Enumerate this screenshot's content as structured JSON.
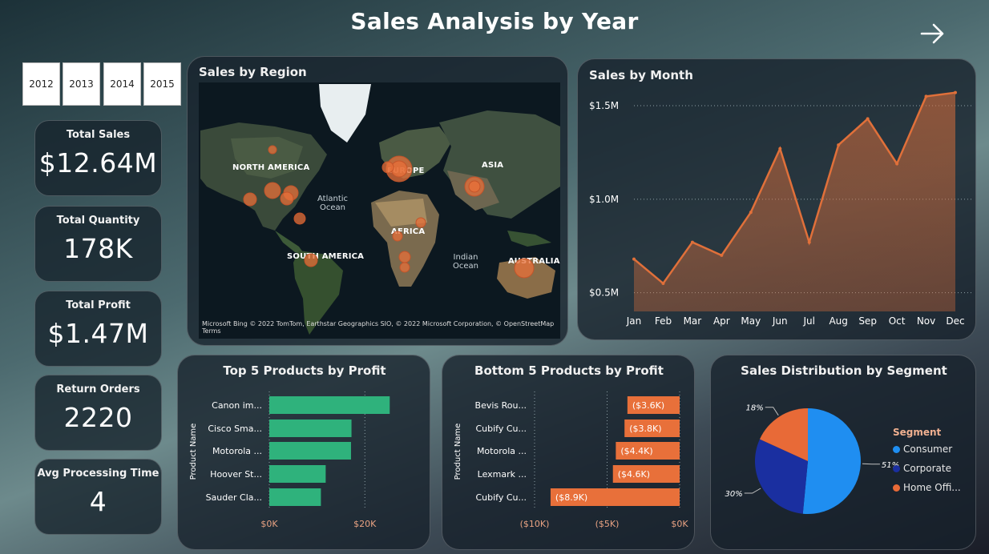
{
  "title": "Sales Analysis by Year",
  "years": [
    "2012",
    "2013",
    "2014",
    "2015"
  ],
  "kpis": [
    {
      "label": "Total Sales",
      "value": "$12.64M"
    },
    {
      "label": "Total Quantity",
      "value": "178K"
    },
    {
      "label": "Total Profit",
      "value": "$1.47M"
    },
    {
      "label": "Return Orders",
      "value": "2220"
    },
    {
      "label": "Avg Processing Time",
      "value": "4"
    }
  ],
  "map": {
    "title": "Sales by Region",
    "continents": [
      "NORTH AMERICA",
      "EUROPE",
      "ASIA",
      "AFRICA",
      "SOUTH AMERICA",
      "AUSTRALIA"
    ],
    "oceans": [
      "Atlantic Ocean",
      "Indian Ocean"
    ],
    "attribution": "Microsoft Bing  © 2022 TomTom, Earthstar Geographics SIO, © 2022 Microsoft Corporation, © OpenStreetMap  Terms",
    "bubble_color": "#e8703a"
  },
  "chart_data": [
    {
      "type": "area",
      "title": "Sales by Month",
      "categories": [
        "Jan",
        "Feb",
        "Mar",
        "Apr",
        "May",
        "Jun",
        "Jul",
        "Aug",
        "Sep",
        "Oct",
        "Nov",
        "Dec"
      ],
      "values": [
        0.68,
        0.55,
        0.77,
        0.7,
        0.93,
        1.27,
        0.77,
        1.29,
        1.43,
        1.19,
        1.55,
        1.57
      ],
      "y_unit": "M",
      "yticks": [
        "$0.5M",
        "$1.0M",
        "$1.5M"
      ],
      "ytick_values": [
        0.5,
        1.0,
        1.5
      ],
      "ylim": [
        0.4,
        1.62
      ],
      "color": "#e0703a"
    },
    {
      "type": "bar",
      "orientation": "horizontal",
      "title": "Top 5 Products by Profit",
      "ylabel": "Product Name",
      "categories": [
        "Canon im...",
        "Cisco Sma...",
        "Motorola ...",
        "Hoover St...",
        "Sauder Cla..."
      ],
      "values": [
        25200,
        17200,
        17100,
        11800,
        10800
      ],
      "xticks": [
        "$0K",
        "$20K"
      ],
      "xtick_values": [
        0,
        20000
      ],
      "xlim": [
        0,
        27000
      ],
      "color": "#2fb27c"
    },
    {
      "type": "bar",
      "orientation": "horizontal",
      "title": "Bottom 5 Products by Profit",
      "ylabel": "Product Name",
      "categories": [
        "Bevis Rou...",
        "Cubify Cu...",
        "Motorola ...",
        "Lexmark ...",
        "Cubify Cu..."
      ],
      "values": [
        -3600,
        -3800,
        -4400,
        -4600,
        -8900
      ],
      "data_labels": [
        "($3.6K)",
        "($3.8K)",
        "($4.4K)",
        "($4.6K)",
        "($8.9K)"
      ],
      "xticks": [
        "($10K)",
        "($5K)",
        "$0K"
      ],
      "xtick_values": [
        -10000,
        -5000,
        0
      ],
      "xlim": [
        -10000,
        0
      ],
      "color": "#e8703a"
    },
    {
      "type": "pie",
      "title": "Sales Distribution by Segment",
      "legend_title": "Segment",
      "categories": [
        "Consumer",
        "Corporate",
        "Home Offi..."
      ],
      "values": [
        51,
        30,
        18
      ],
      "data_labels": [
        "51%",
        "30%",
        "18%"
      ],
      "colors": [
        "#1f8ef1",
        "#1a2fa0",
        "#e86a37"
      ],
      "legend": "right"
    }
  ]
}
